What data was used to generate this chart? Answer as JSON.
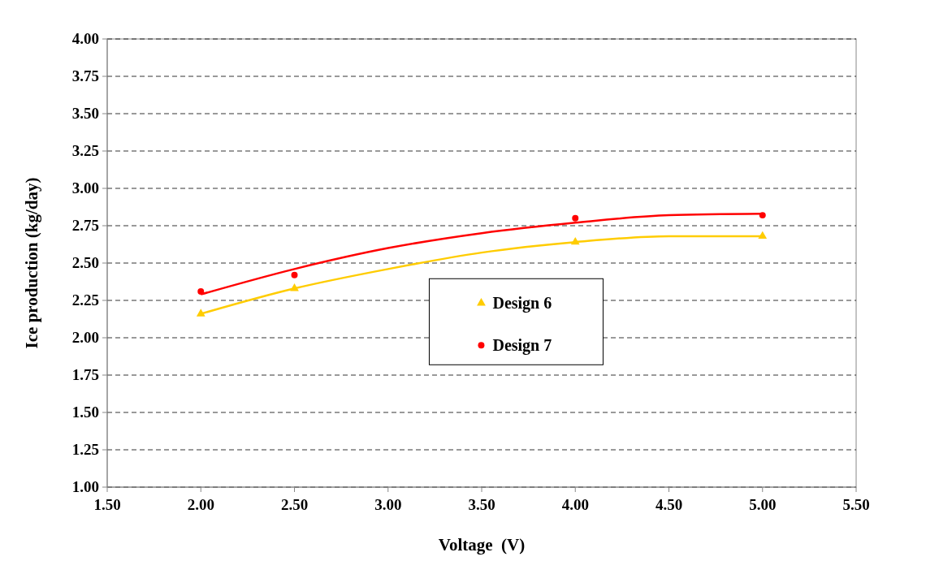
{
  "chart_data": {
    "type": "scatter",
    "xlabel": "Voltage  (V)",
    "ylabel": "Ice production (kg/day)",
    "xlim": [
      1.5,
      5.5
    ],
    "xticks": [
      {
        "value": 1.5,
        "label": "1.50"
      },
      {
        "value": 2,
        "label": "2.00"
      },
      {
        "value": 2.5,
        "label": "2.50"
      },
      {
        "value": 3,
        "label": "3.00"
      },
      {
        "value": 3.5,
        "label": "3.50"
      },
      {
        "value": 4,
        "label": "4.00"
      },
      {
        "value": 4.5,
        "label": "4.50"
      },
      {
        "value": 5,
        "label": "5.00"
      },
      {
        "value": 5.5,
        "label": "5.50"
      }
    ],
    "ylim": [
      1,
      4
    ],
    "yticks": [
      {
        "value": 1,
        "label": "1.00"
      },
      {
        "value": 1.25,
        "label": "1.25"
      },
      {
        "value": 1.5,
        "label": "1.50"
      },
      {
        "value": 1.75,
        "label": "1.75"
      },
      {
        "value": 2,
        "label": "2.00"
      },
      {
        "value": 2.25,
        "label": "2.25"
      },
      {
        "value": 2.5,
        "label": "2.50"
      },
      {
        "value": 2.75,
        "label": "2.75"
      },
      {
        "value": 3,
        "label": "3.00"
      },
      {
        "value": 3.25,
        "label": "3.25"
      },
      {
        "value": 3.5,
        "label": "3.50"
      },
      {
        "value": 3.75,
        "label": "3.75"
      },
      {
        "value": 4,
        "label": "4.00"
      }
    ],
    "grid": "y",
    "legend": "center",
    "series": [
      {
        "name": "Design 6",
        "marker": "triangle",
        "color": "#ffcc00",
        "x": [
          2,
          2.5,
          4,
          5
        ],
        "values": [
          2.16,
          2.33,
          2.64,
          2.68
        ]
      },
      {
        "name": "Design 7",
        "marker": "circle",
        "color": "#ff0000",
        "x": [
          2,
          2.5,
          4,
          5
        ],
        "values": [
          2.31,
          2.42,
          2.8,
          2.82
        ]
      },
      {
        "type": "line",
        "color": "#ffcc00",
        "x": [
          2,
          2.5,
          3,
          3.5,
          4,
          4.5,
          5
        ],
        "values": [
          2.16,
          2.33,
          2.46,
          2.57,
          2.64,
          2.68,
          2.68
        ]
      },
      {
        "type": "line",
        "color": "#ff0000",
        "x": [
          2,
          2.5,
          3,
          3.5,
          4,
          4.5,
          5
        ],
        "values": [
          2.29,
          2.46,
          2.6,
          2.7,
          2.77,
          2.82,
          2.83
        ]
      }
    ]
  }
}
